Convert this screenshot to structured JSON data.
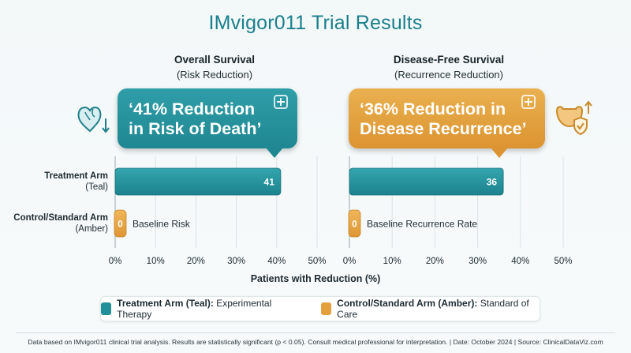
{
  "title": "IMvigor011 Trial Results",
  "colors": {
    "teal": "#22909b",
    "amber": "#e3a03d",
    "title": "#1b7f8c"
  },
  "chart_data": [
    {
      "type": "bar",
      "orientation": "horizontal",
      "title": "Overall Survival",
      "subtitle": "(Risk Reduction)",
      "callout": "‘41% Reduction in Risk of Death’",
      "callout_lines": [
        "‘41% Reduction",
        "in Risk of Death’"
      ],
      "categories": [
        "Treatment Arm (Teal)",
        "Control/Standard Arm (Amber)"
      ],
      "values": [
        41,
        0
      ],
      "value_labels": [
        "41",
        "0"
      ],
      "annotations": [
        "",
        "Baseline Risk"
      ],
      "xlim": [
        0,
        50
      ],
      "xticks": [
        "0%",
        "10%",
        "20%",
        "30%",
        "40%",
        "50%"
      ],
      "xlabel": "Patients with Reduction (%)",
      "grid": true,
      "icon": "heart-down-icon"
    },
    {
      "type": "bar",
      "orientation": "horizontal",
      "title": "Disease-Free Survival",
      "subtitle": "(Recurrence Reduction)",
      "callout": "‘36% Reduction in Disease Recurrence’",
      "callout_lines": [
        "‘36% Reduction in",
        "Disease Recurrence’"
      ],
      "categories": [
        "Treatment Arm (Teal)",
        "Control/Standard Arm (Amber)"
      ],
      "values": [
        36,
        0
      ],
      "value_labels": [
        "36",
        "0"
      ],
      "annotations": [
        "",
        "Baseline Recurrence Rate"
      ],
      "xlim": [
        0,
        50
      ],
      "xticks": [
        "0%",
        "10%",
        "20%",
        "30%",
        "40%",
        "50%"
      ],
      "xlabel": "Patients with Reduction (%)",
      "grid": true,
      "icon": "bladder-shield-icon"
    }
  ],
  "row_labels": [
    {
      "name": "Treatment Arm",
      "detail": "(Teal)"
    },
    {
      "name": "Control/Standard Arm",
      "detail": "(Amber)"
    }
  ],
  "axis_title": "Patients with Reduction (%)",
  "legend": [
    {
      "bold": "Treatment Arm (Teal):",
      "text": " Experimental Therapy",
      "color": "teal"
    },
    {
      "bold": "Control/Standard Arm (Amber):",
      "text": " Standard of Care",
      "color": "amber"
    }
  ],
  "footer": "Data based on IMvigor011 clinical trial analysis. Results are statistically significant (p < 0.05). Consult medical professional for interpretation. | Date: October 2024 | Source: ClinicalDataViz.com"
}
